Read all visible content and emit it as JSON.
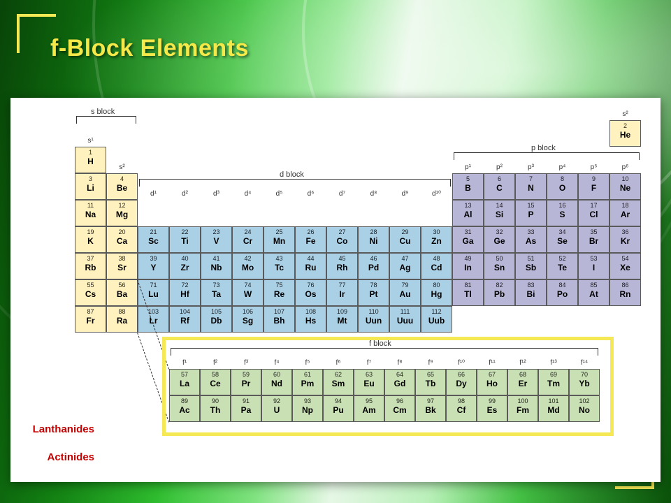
{
  "slide": {
    "title": "f-Block Elements",
    "title_color": "#f5e94a",
    "accent_color": "#f4e955",
    "background_colors": [
      "#0b5b0b",
      "#149014",
      "#2fbf2f",
      "#7fe27f",
      "#e6f7e6",
      "#b9efb9",
      "#4ad14a",
      "#0d6b0d"
    ]
  },
  "labels": {
    "lanthanides": "Lanthanides",
    "actinides": "Actinides",
    "s_block": "s block",
    "p_block": "p block",
    "d_block": "d block",
    "f_block": "f block"
  },
  "headers": {
    "s": [
      "s¹",
      "s²"
    ],
    "s2_he": "s²",
    "p": [
      "p¹",
      "p²",
      "p³",
      "p⁴",
      "p⁵",
      "p⁶"
    ],
    "d": [
      "d¹",
      "d²",
      "d³",
      "d⁴",
      "d⁵",
      "d⁶",
      "d⁷",
      "d⁸",
      "d⁹",
      "d¹⁰"
    ],
    "f": [
      "f¹",
      "f²",
      "f³",
      "f⁴",
      "f⁵",
      "f⁶",
      "f⁷",
      "f⁸",
      "f⁹",
      "f¹⁰",
      "f¹¹",
      "f¹²",
      "f¹³",
      "f¹⁴"
    ]
  },
  "palette": {
    "s": "#fff2bf",
    "p": "#b8b6d6",
    "d": "#aad0e6",
    "f": "#c9dfb4",
    "he_fill": "#fff2bf",
    "border": "#5a5a5a"
  },
  "cell": {
    "w": 45,
    "h": 38,
    "f_w": 44,
    "f_h": 38
  },
  "layout": {
    "main_cols": 18,
    "main_rows": 7,
    "f_rows": 2,
    "f_cols": 14,
    "f_origin_col": 3,
    "he_col_index": 17,
    "p_start_col": 12,
    "d_start_col": 2,
    "d_end_col": 11,
    "p_end_col": 17
  },
  "elements_main": [
    {
      "r": 0,
      "c": 0,
      "z": 1,
      "s": "H",
      "blk": "s"
    },
    {
      "r": 0,
      "c": 17,
      "z": 2,
      "s": "He",
      "blk": "he"
    },
    {
      "r": 1,
      "c": 0,
      "z": 3,
      "s": "Li",
      "blk": "s"
    },
    {
      "r": 1,
      "c": 1,
      "z": 4,
      "s": "Be",
      "blk": "s"
    },
    {
      "r": 1,
      "c": 12,
      "z": 5,
      "s": "B",
      "blk": "p"
    },
    {
      "r": 1,
      "c": 13,
      "z": 6,
      "s": "C",
      "blk": "p"
    },
    {
      "r": 1,
      "c": 14,
      "z": 7,
      "s": "N",
      "blk": "p"
    },
    {
      "r": 1,
      "c": 15,
      "z": 8,
      "s": "O",
      "blk": "p"
    },
    {
      "r": 1,
      "c": 16,
      "z": 9,
      "s": "F",
      "blk": "p"
    },
    {
      "r": 1,
      "c": 17,
      "z": 10,
      "s": "Ne",
      "blk": "p"
    },
    {
      "r": 2,
      "c": 0,
      "z": 11,
      "s": "Na",
      "blk": "s"
    },
    {
      "r": 2,
      "c": 1,
      "z": 12,
      "s": "Mg",
      "blk": "s"
    },
    {
      "r": 2,
      "c": 12,
      "z": 13,
      "s": "Al",
      "blk": "p"
    },
    {
      "r": 2,
      "c": 13,
      "z": 14,
      "s": "Si",
      "blk": "p"
    },
    {
      "r": 2,
      "c": 14,
      "z": 15,
      "s": "P",
      "blk": "p"
    },
    {
      "r": 2,
      "c": 15,
      "z": 16,
      "s": "S",
      "blk": "p"
    },
    {
      "r": 2,
      "c": 16,
      "z": 17,
      "s": "Cl",
      "blk": "p"
    },
    {
      "r": 2,
      "c": 17,
      "z": 18,
      "s": "Ar",
      "blk": "p"
    },
    {
      "r": 3,
      "c": 0,
      "z": 19,
      "s": "K",
      "blk": "s"
    },
    {
      "r": 3,
      "c": 1,
      "z": 20,
      "s": "Ca",
      "blk": "s"
    },
    {
      "r": 3,
      "c": 2,
      "z": 21,
      "s": "Sc",
      "blk": "d"
    },
    {
      "r": 3,
      "c": 3,
      "z": 22,
      "s": "Ti",
      "blk": "d"
    },
    {
      "r": 3,
      "c": 4,
      "z": 23,
      "s": "V",
      "blk": "d"
    },
    {
      "r": 3,
      "c": 5,
      "z": 24,
      "s": "Cr",
      "blk": "d"
    },
    {
      "r": 3,
      "c": 6,
      "z": 25,
      "s": "Mn",
      "blk": "d"
    },
    {
      "r": 3,
      "c": 7,
      "z": 26,
      "s": "Fe",
      "blk": "d"
    },
    {
      "r": 3,
      "c": 8,
      "z": 27,
      "s": "Co",
      "blk": "d"
    },
    {
      "r": 3,
      "c": 9,
      "z": 28,
      "s": "Ni",
      "blk": "d"
    },
    {
      "r": 3,
      "c": 10,
      "z": 29,
      "s": "Cu",
      "blk": "d"
    },
    {
      "r": 3,
      "c": 11,
      "z": 30,
      "s": "Zn",
      "blk": "d"
    },
    {
      "r": 3,
      "c": 12,
      "z": 31,
      "s": "Ga",
      "blk": "p"
    },
    {
      "r": 3,
      "c": 13,
      "z": 32,
      "s": "Ge",
      "blk": "p"
    },
    {
      "r": 3,
      "c": 14,
      "z": 33,
      "s": "As",
      "blk": "p"
    },
    {
      "r": 3,
      "c": 15,
      "z": 34,
      "s": "Se",
      "blk": "p"
    },
    {
      "r": 3,
      "c": 16,
      "z": 35,
      "s": "Br",
      "blk": "p"
    },
    {
      "r": 3,
      "c": 17,
      "z": 36,
      "s": "Kr",
      "blk": "p"
    },
    {
      "r": 4,
      "c": 0,
      "z": 37,
      "s": "Rb",
      "blk": "s"
    },
    {
      "r": 4,
      "c": 1,
      "z": 38,
      "s": "Sr",
      "blk": "s"
    },
    {
      "r": 4,
      "c": 2,
      "z": 39,
      "s": "Y",
      "blk": "d"
    },
    {
      "r": 4,
      "c": 3,
      "z": 40,
      "s": "Zr",
      "blk": "d"
    },
    {
      "r": 4,
      "c": 4,
      "z": 41,
      "s": "Nb",
      "blk": "d"
    },
    {
      "r": 4,
      "c": 5,
      "z": 42,
      "s": "Mo",
      "blk": "d"
    },
    {
      "r": 4,
      "c": 6,
      "z": 43,
      "s": "Tc",
      "blk": "d"
    },
    {
      "r": 4,
      "c": 7,
      "z": 44,
      "s": "Ru",
      "blk": "d"
    },
    {
      "r": 4,
      "c": 8,
      "z": 45,
      "s": "Rh",
      "blk": "d"
    },
    {
      "r": 4,
      "c": 9,
      "z": 46,
      "s": "Pd",
      "blk": "d"
    },
    {
      "r": 4,
      "c": 10,
      "z": 47,
      "s": "Ag",
      "blk": "d"
    },
    {
      "r": 4,
      "c": 11,
      "z": 48,
      "s": "Cd",
      "blk": "d"
    },
    {
      "r": 4,
      "c": 12,
      "z": 49,
      "s": "In",
      "blk": "p"
    },
    {
      "r": 4,
      "c": 13,
      "z": 50,
      "s": "Sn",
      "blk": "p"
    },
    {
      "r": 4,
      "c": 14,
      "z": 51,
      "s": "Sb",
      "blk": "p"
    },
    {
      "r": 4,
      "c": 15,
      "z": 52,
      "s": "Te",
      "blk": "p"
    },
    {
      "r": 4,
      "c": 16,
      "z": 53,
      "s": "I",
      "blk": "p"
    },
    {
      "r": 4,
      "c": 17,
      "z": 54,
      "s": "Xe",
      "blk": "p"
    },
    {
      "r": 5,
      "c": 0,
      "z": 55,
      "s": "Cs",
      "blk": "s"
    },
    {
      "r": 5,
      "c": 1,
      "z": 56,
      "s": "Ba",
      "blk": "s"
    },
    {
      "r": 5,
      "c": 2,
      "z": 71,
      "s": "Lu",
      "blk": "d"
    },
    {
      "r": 5,
      "c": 3,
      "z": 72,
      "s": "Hf",
      "blk": "d"
    },
    {
      "r": 5,
      "c": 4,
      "z": 73,
      "s": "Ta",
      "blk": "d"
    },
    {
      "r": 5,
      "c": 5,
      "z": 74,
      "s": "W",
      "blk": "d"
    },
    {
      "r": 5,
      "c": 6,
      "z": 75,
      "s": "Re",
      "blk": "d"
    },
    {
      "r": 5,
      "c": 7,
      "z": 76,
      "s": "Os",
      "blk": "d"
    },
    {
      "r": 5,
      "c": 8,
      "z": 77,
      "s": "Ir",
      "blk": "d"
    },
    {
      "r": 5,
      "c": 9,
      "z": 78,
      "s": "Pt",
      "blk": "d"
    },
    {
      "r": 5,
      "c": 10,
      "z": 79,
      "s": "Au",
      "blk": "d"
    },
    {
      "r": 5,
      "c": 11,
      "z": 80,
      "s": "Hg",
      "blk": "d"
    },
    {
      "r": 5,
      "c": 12,
      "z": 81,
      "s": "Tl",
      "blk": "p"
    },
    {
      "r": 5,
      "c": 13,
      "z": 82,
      "s": "Pb",
      "blk": "p"
    },
    {
      "r": 5,
      "c": 14,
      "z": 83,
      "s": "Bi",
      "blk": "p"
    },
    {
      "r": 5,
      "c": 15,
      "z": 84,
      "s": "Po",
      "blk": "p"
    },
    {
      "r": 5,
      "c": 16,
      "z": 85,
      "s": "At",
      "blk": "p"
    },
    {
      "r": 5,
      "c": 17,
      "z": 86,
      "s": "Rn",
      "blk": "p"
    },
    {
      "r": 6,
      "c": 0,
      "z": 87,
      "s": "Fr",
      "blk": "s"
    },
    {
      "r": 6,
      "c": 1,
      "z": 88,
      "s": "Ra",
      "blk": "s"
    },
    {
      "r": 6,
      "c": 2,
      "z": 103,
      "s": "Lr",
      "blk": "d"
    },
    {
      "r": 6,
      "c": 3,
      "z": 104,
      "s": "Rf",
      "blk": "d"
    },
    {
      "r": 6,
      "c": 4,
      "z": 105,
      "s": "Db",
      "blk": "d"
    },
    {
      "r": 6,
      "c": 5,
      "z": 106,
      "s": "Sg",
      "blk": "d"
    },
    {
      "r": 6,
      "c": 6,
      "z": 107,
      "s": "Bh",
      "blk": "d"
    },
    {
      "r": 6,
      "c": 7,
      "z": 108,
      "s": "Hs",
      "blk": "d"
    },
    {
      "r": 6,
      "c": 8,
      "z": 109,
      "s": "Mt",
      "blk": "d"
    },
    {
      "r": 6,
      "c": 9,
      "z": 110,
      "s": "Uun",
      "blk": "d"
    },
    {
      "r": 6,
      "c": 10,
      "z": 111,
      "s": "Uuu",
      "blk": "d"
    },
    {
      "r": 6,
      "c": 11,
      "z": 112,
      "s": "Uub",
      "blk": "d"
    }
  ],
  "elements_f": [
    {
      "r": 0,
      "c": 0,
      "z": 57,
      "s": "La"
    },
    {
      "r": 0,
      "c": 1,
      "z": 58,
      "s": "Ce"
    },
    {
      "r": 0,
      "c": 2,
      "z": 59,
      "s": "Pr"
    },
    {
      "r": 0,
      "c": 3,
      "z": 60,
      "s": "Nd"
    },
    {
      "r": 0,
      "c": 4,
      "z": 61,
      "s": "Pm"
    },
    {
      "r": 0,
      "c": 5,
      "z": 62,
      "s": "Sm"
    },
    {
      "r": 0,
      "c": 6,
      "z": 63,
      "s": "Eu"
    },
    {
      "r": 0,
      "c": 7,
      "z": 64,
      "s": "Gd"
    },
    {
      "r": 0,
      "c": 8,
      "z": 65,
      "s": "Tb"
    },
    {
      "r": 0,
      "c": 9,
      "z": 66,
      "s": "Dy"
    },
    {
      "r": 0,
      "c": 10,
      "z": 67,
      "s": "Ho"
    },
    {
      "r": 0,
      "c": 11,
      "z": 68,
      "s": "Er"
    },
    {
      "r": 0,
      "c": 12,
      "z": 69,
      "s": "Tm"
    },
    {
      "r": 0,
      "c": 13,
      "z": 70,
      "s": "Yb"
    },
    {
      "r": 1,
      "c": 0,
      "z": 89,
      "s": "Ac"
    },
    {
      "r": 1,
      "c": 1,
      "z": 90,
      "s": "Th"
    },
    {
      "r": 1,
      "c": 2,
      "z": 91,
      "s": "Pa"
    },
    {
      "r": 1,
      "c": 3,
      "z": 92,
      "s": "U"
    },
    {
      "r": 1,
      "c": 4,
      "z": 93,
      "s": "Np"
    },
    {
      "r": 1,
      "c": 5,
      "z": 94,
      "s": "Pu"
    },
    {
      "r": 1,
      "c": 6,
      "z": 95,
      "s": "Am"
    },
    {
      "r": 1,
      "c": 7,
      "z": 96,
      "s": "Cm"
    },
    {
      "r": 1,
      "c": 8,
      "z": 97,
      "s": "Bk"
    },
    {
      "r": 1,
      "c": 9,
      "z": 98,
      "s": "Cf"
    },
    {
      "r": 1,
      "c": 10,
      "z": 99,
      "s": "Es"
    },
    {
      "r": 1,
      "c": 11,
      "z": 100,
      "s": "Fm"
    },
    {
      "r": 1,
      "c": 12,
      "z": 101,
      "s": "Md"
    },
    {
      "r": 1,
      "c": 13,
      "z": 102,
      "s": "No"
    }
  ]
}
